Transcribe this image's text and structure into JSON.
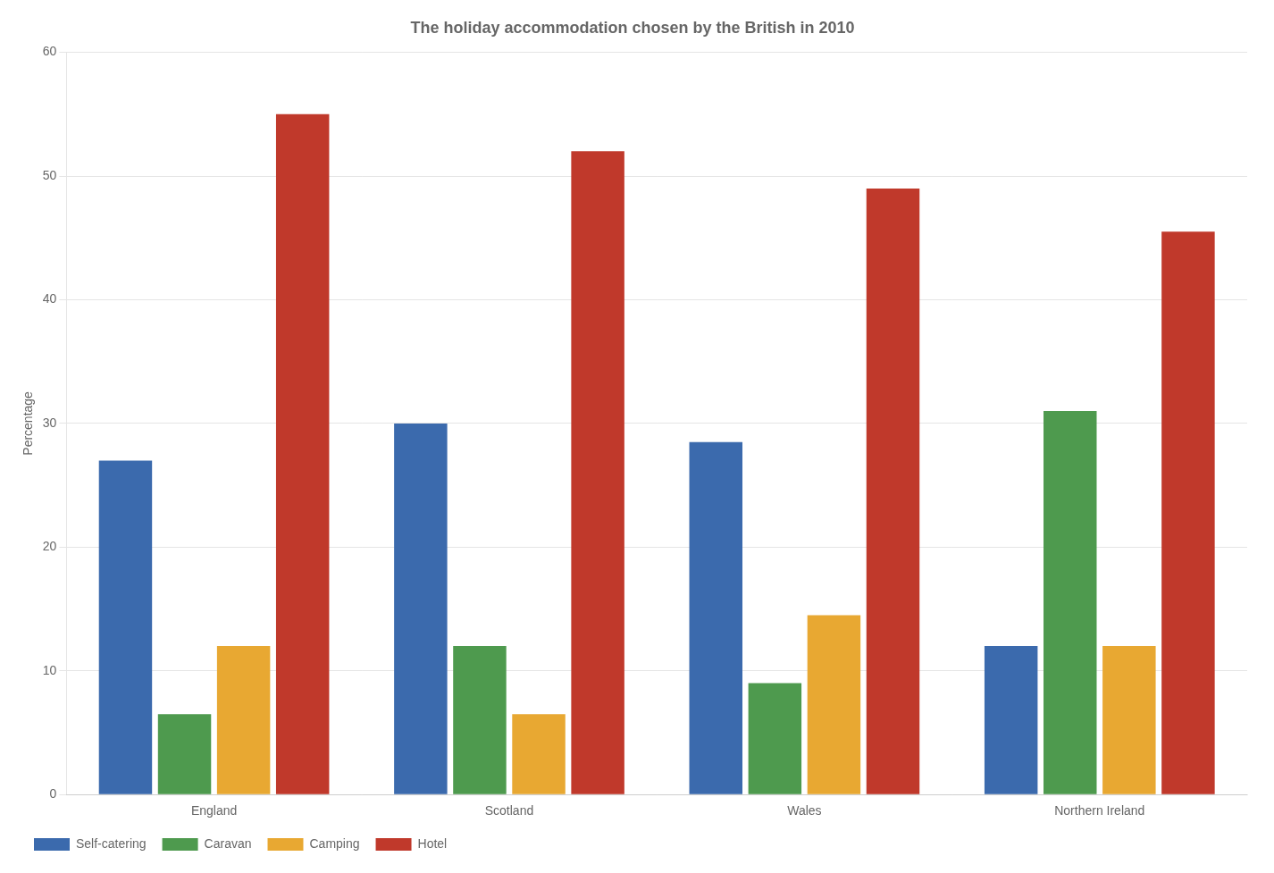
{
  "chart_data": {
    "type": "bar",
    "title": "The holiday accommodation chosen by the British in 2010",
    "categories": [
      "England",
      "Scotland",
      "Wales",
      "Northern Ireland"
    ],
    "series": [
      {
        "name": "Self-catering",
        "color": "#3B6AAD",
        "values": [
          27,
          30,
          28.5,
          12
        ]
      },
      {
        "name": "Caravan",
        "color": "#4E9A4E",
        "values": [
          6.5,
          12,
          9,
          31
        ]
      },
      {
        "name": "Camping",
        "color": "#E8A832",
        "values": [
          12,
          6.5,
          14.5,
          12
        ]
      },
      {
        "name": "Hotel",
        "color": "#C0392B",
        "values": [
          55,
          52,
          49,
          45.5
        ]
      }
    ],
    "ylabel": "Percentage",
    "ylim": [
      0,
      60
    ],
    "yticks": [
      0,
      10,
      20,
      30,
      40,
      50,
      60
    ],
    "grid": true,
    "legend": "bottom"
  }
}
